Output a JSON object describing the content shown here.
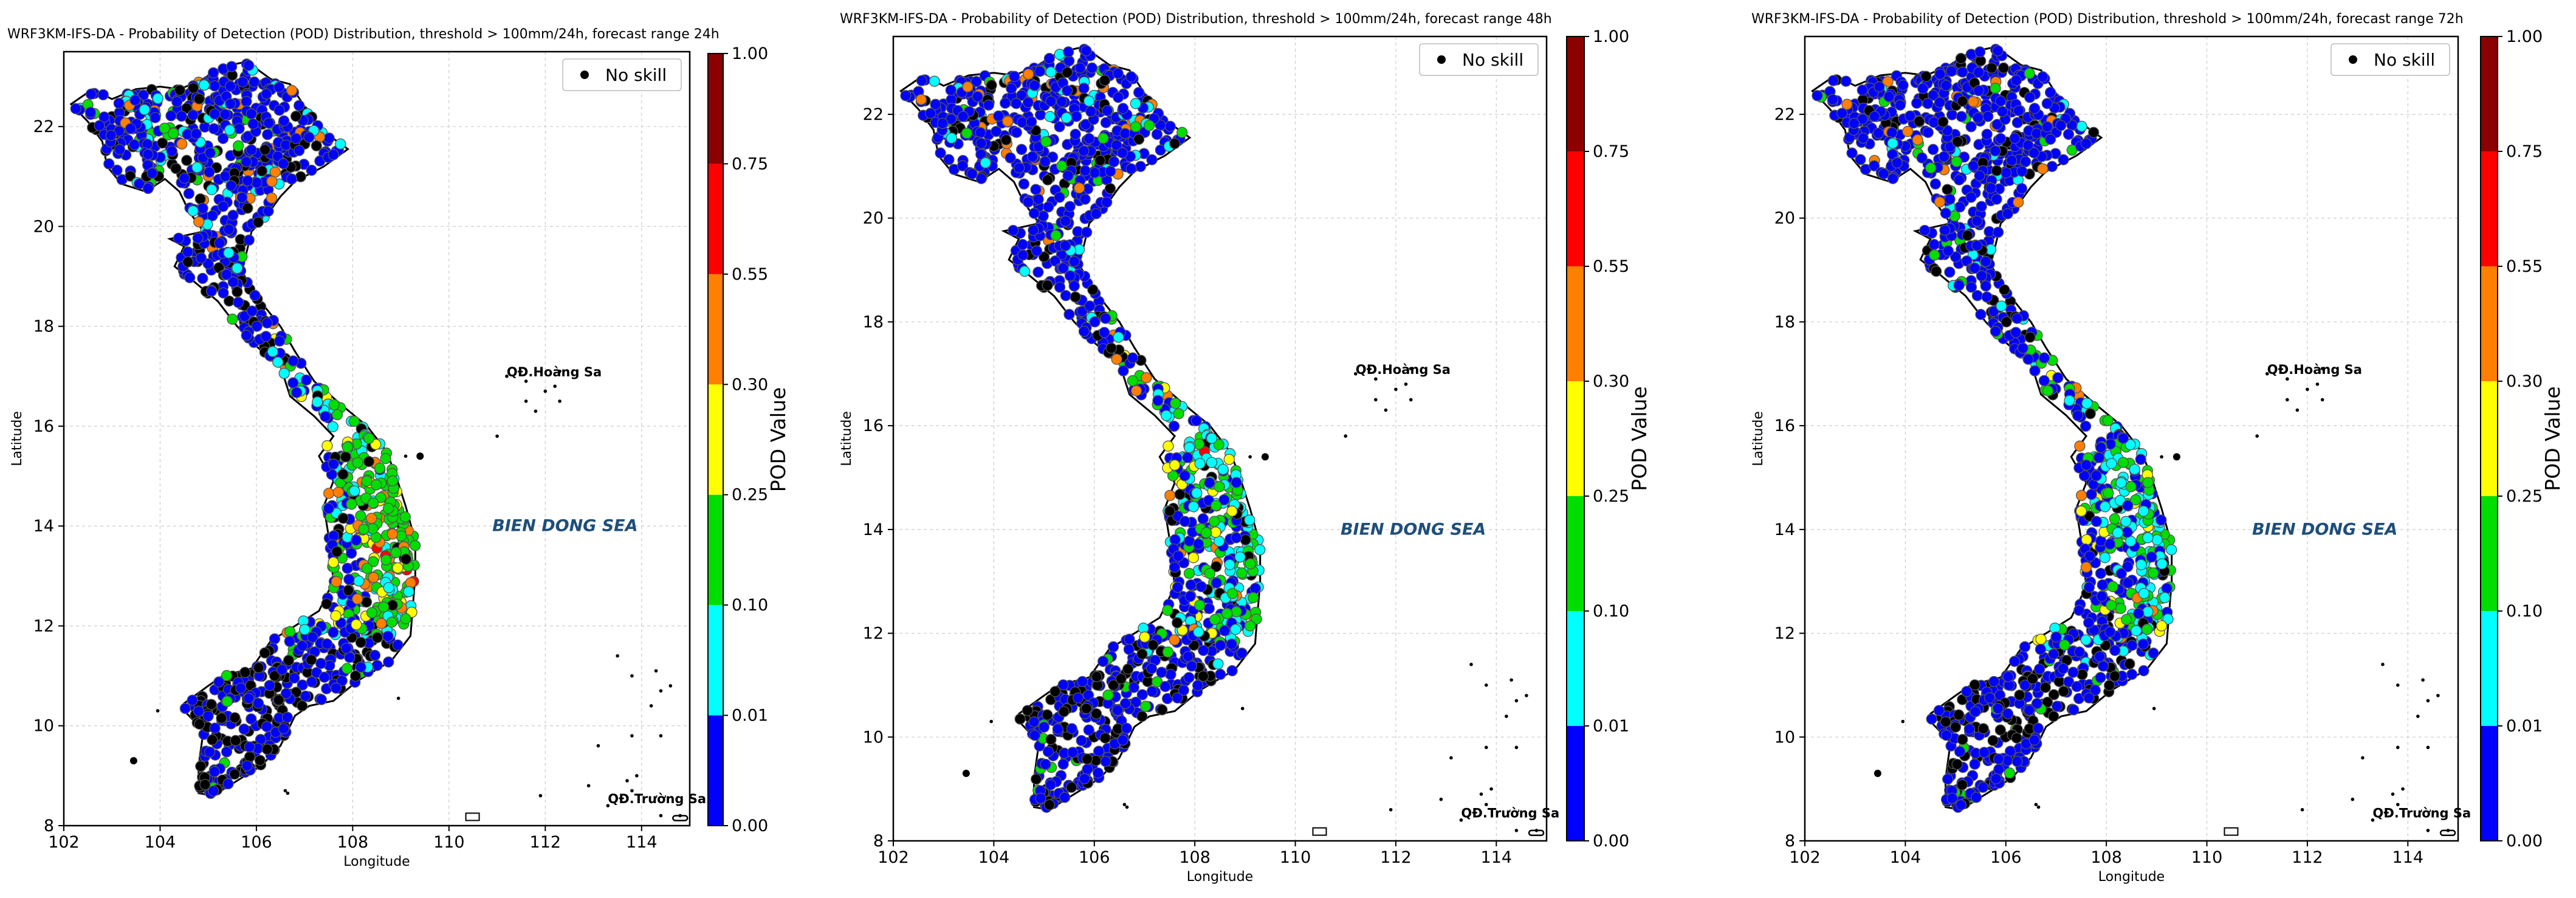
{
  "colors": {
    "no_skill": "#000000",
    "label_blue": "#1f4e79",
    "frame": "#000000",
    "grid": "#cccccc",
    "bins": [
      "#0000ff",
      "#00ffff",
      "#00dd00",
      "#ffff00",
      "#ff7f00",
      "#ff0000",
      "#8b0000"
    ]
  },
  "shared": {
    "xlabel": "Longitude",
    "ylabel": "Latitude",
    "x_ticks": [
      "102",
      "104",
      "106",
      "108",
      "110",
      "112",
      "114"
    ],
    "y_ticks": [
      "8",
      "10",
      "12",
      "14",
      "16",
      "18",
      "20",
      "22"
    ],
    "xlim": [
      102,
      115
    ],
    "ylim": [
      8,
      23.5
    ],
    "legend_label": "No skill",
    "legend_placement": "top-right",
    "colorbar_label": "POD Value",
    "colorbar_ticks": [
      "0.00",
      "0.01",
      "0.10",
      "0.25",
      "0.30",
      "0.55",
      "0.75",
      "1.00"
    ],
    "annotations": {
      "hoang_sa": "QĐ.Hoàng Sa",
      "truong_sa": "QĐ.Trường Sa",
      "sea": "BIEN DONG SEA"
    }
  },
  "panels": [
    {
      "title": "WRF3KM-IFS-DA - Probability of Detection (POD) Distribution, threshold > 100mm/24h, forecast range 24h"
    },
    {
      "title": "WRF3KM-IFS-DA - Probability of Detection (POD) Distribution, threshold > 100mm/24h, forecast range 48h"
    },
    {
      "title": "WRF3KM-IFS-DA - Probability of Detection (POD) Distribution, threshold > 100mm/24h, forecast range 72h"
    }
  ]
}
